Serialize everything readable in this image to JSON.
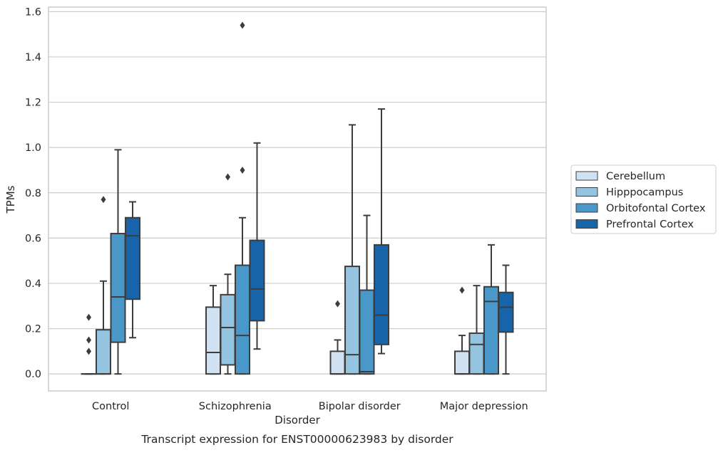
{
  "chart_data": {
    "type": "boxplot",
    "caption": "Transcript expression for ENST00000623983 by disorder",
    "xlabel": "Disorder",
    "ylabel": "TPMs",
    "ylim": [
      -0.075,
      1.62
    ],
    "yticks": [
      "0.0",
      "0.2",
      "0.4",
      "0.6",
      "0.8",
      "1.0",
      "1.2",
      "1.4",
      "1.6"
    ],
    "ytick_values": [
      0,
      0.2,
      0.4,
      0.6,
      0.8,
      1.0,
      1.2,
      1.4,
      1.6
    ],
    "grid": "horizontal",
    "legend_position": "right",
    "categories": [
      "Control",
      "Schizophrenia",
      "Bipolar disorder",
      "Major depression"
    ],
    "series": [
      {
        "name": "Cerebellum",
        "color": "#d0e1f2",
        "boxes": [
          {
            "whislo": 0,
            "q1": 0,
            "med": 0,
            "q3": 0,
            "whishi": 0,
            "fliers": [
              0.1,
              0.15,
              0.25
            ]
          },
          {
            "whislo": 0,
            "q1": 0,
            "med": 0.095,
            "q3": 0.295,
            "whishi": 0.39,
            "fliers": []
          },
          {
            "whislo": 0,
            "q1": 0,
            "med": 0,
            "q3": 0.1,
            "whishi": 0.15,
            "fliers": [
              0.31
            ]
          },
          {
            "whislo": 0,
            "q1": 0,
            "med": 0,
            "q3": 0.1,
            "whishi": 0.17,
            "fliers": [
              0.37
            ]
          }
        ]
      },
      {
        "name": "Hipppocampus",
        "color": "#94c4df",
        "boxes": [
          {
            "whislo": 0,
            "q1": 0,
            "med": 0,
            "q3": 0.195,
            "whishi": 0.41,
            "fliers": [
              0.77
            ]
          },
          {
            "whislo": 0,
            "q1": 0.04,
            "med": 0.205,
            "q3": 0.35,
            "whishi": 0.44,
            "fliers": [
              0.87
            ]
          },
          {
            "whislo": 0,
            "q1": 0,
            "med": 0.085,
            "q3": 0.475,
            "whishi": 1.1,
            "fliers": []
          },
          {
            "whislo": 0,
            "q1": 0,
            "med": 0.13,
            "q3": 0.18,
            "whishi": 0.39,
            "fliers": []
          }
        ]
      },
      {
        "name": "Orbitofontal Cortex",
        "color": "#4a98c9",
        "boxes": [
          {
            "whislo": 0,
            "q1": 0.14,
            "med": 0.34,
            "q3": 0.62,
            "whishi": 0.99,
            "fliers": []
          },
          {
            "whislo": 0,
            "q1": 0,
            "med": 0.17,
            "q3": 0.48,
            "whishi": 0.69,
            "fliers": [
              0.9,
              1.54
            ]
          },
          {
            "whislo": 0,
            "q1": 0,
            "med": 0.01,
            "q3": 0.37,
            "whishi": 0.7,
            "fliers": []
          },
          {
            "whislo": 0,
            "q1": 0,
            "med": 0.32,
            "q3": 0.385,
            "whishi": 0.57,
            "fliers": []
          }
        ]
      },
      {
        "name": "Prefrontal Cortex",
        "color": "#1764ab",
        "boxes": [
          {
            "whislo": 0.16,
            "q1": 0.33,
            "med": 0.61,
            "q3": 0.69,
            "whishi": 0.76,
            "fliers": []
          },
          {
            "whislo": 0.11,
            "q1": 0.235,
            "med": 0.375,
            "q3": 0.59,
            "whishi": 1.02,
            "fliers": []
          },
          {
            "whislo": 0.09,
            "q1": 0.13,
            "med": 0.26,
            "q3": 0.57,
            "whishi": 1.17,
            "fliers": []
          },
          {
            "whislo": 0,
            "q1": 0.185,
            "med": 0.295,
            "q3": 0.36,
            "whishi": 0.48,
            "fliers": []
          }
        ]
      }
    ]
  }
}
